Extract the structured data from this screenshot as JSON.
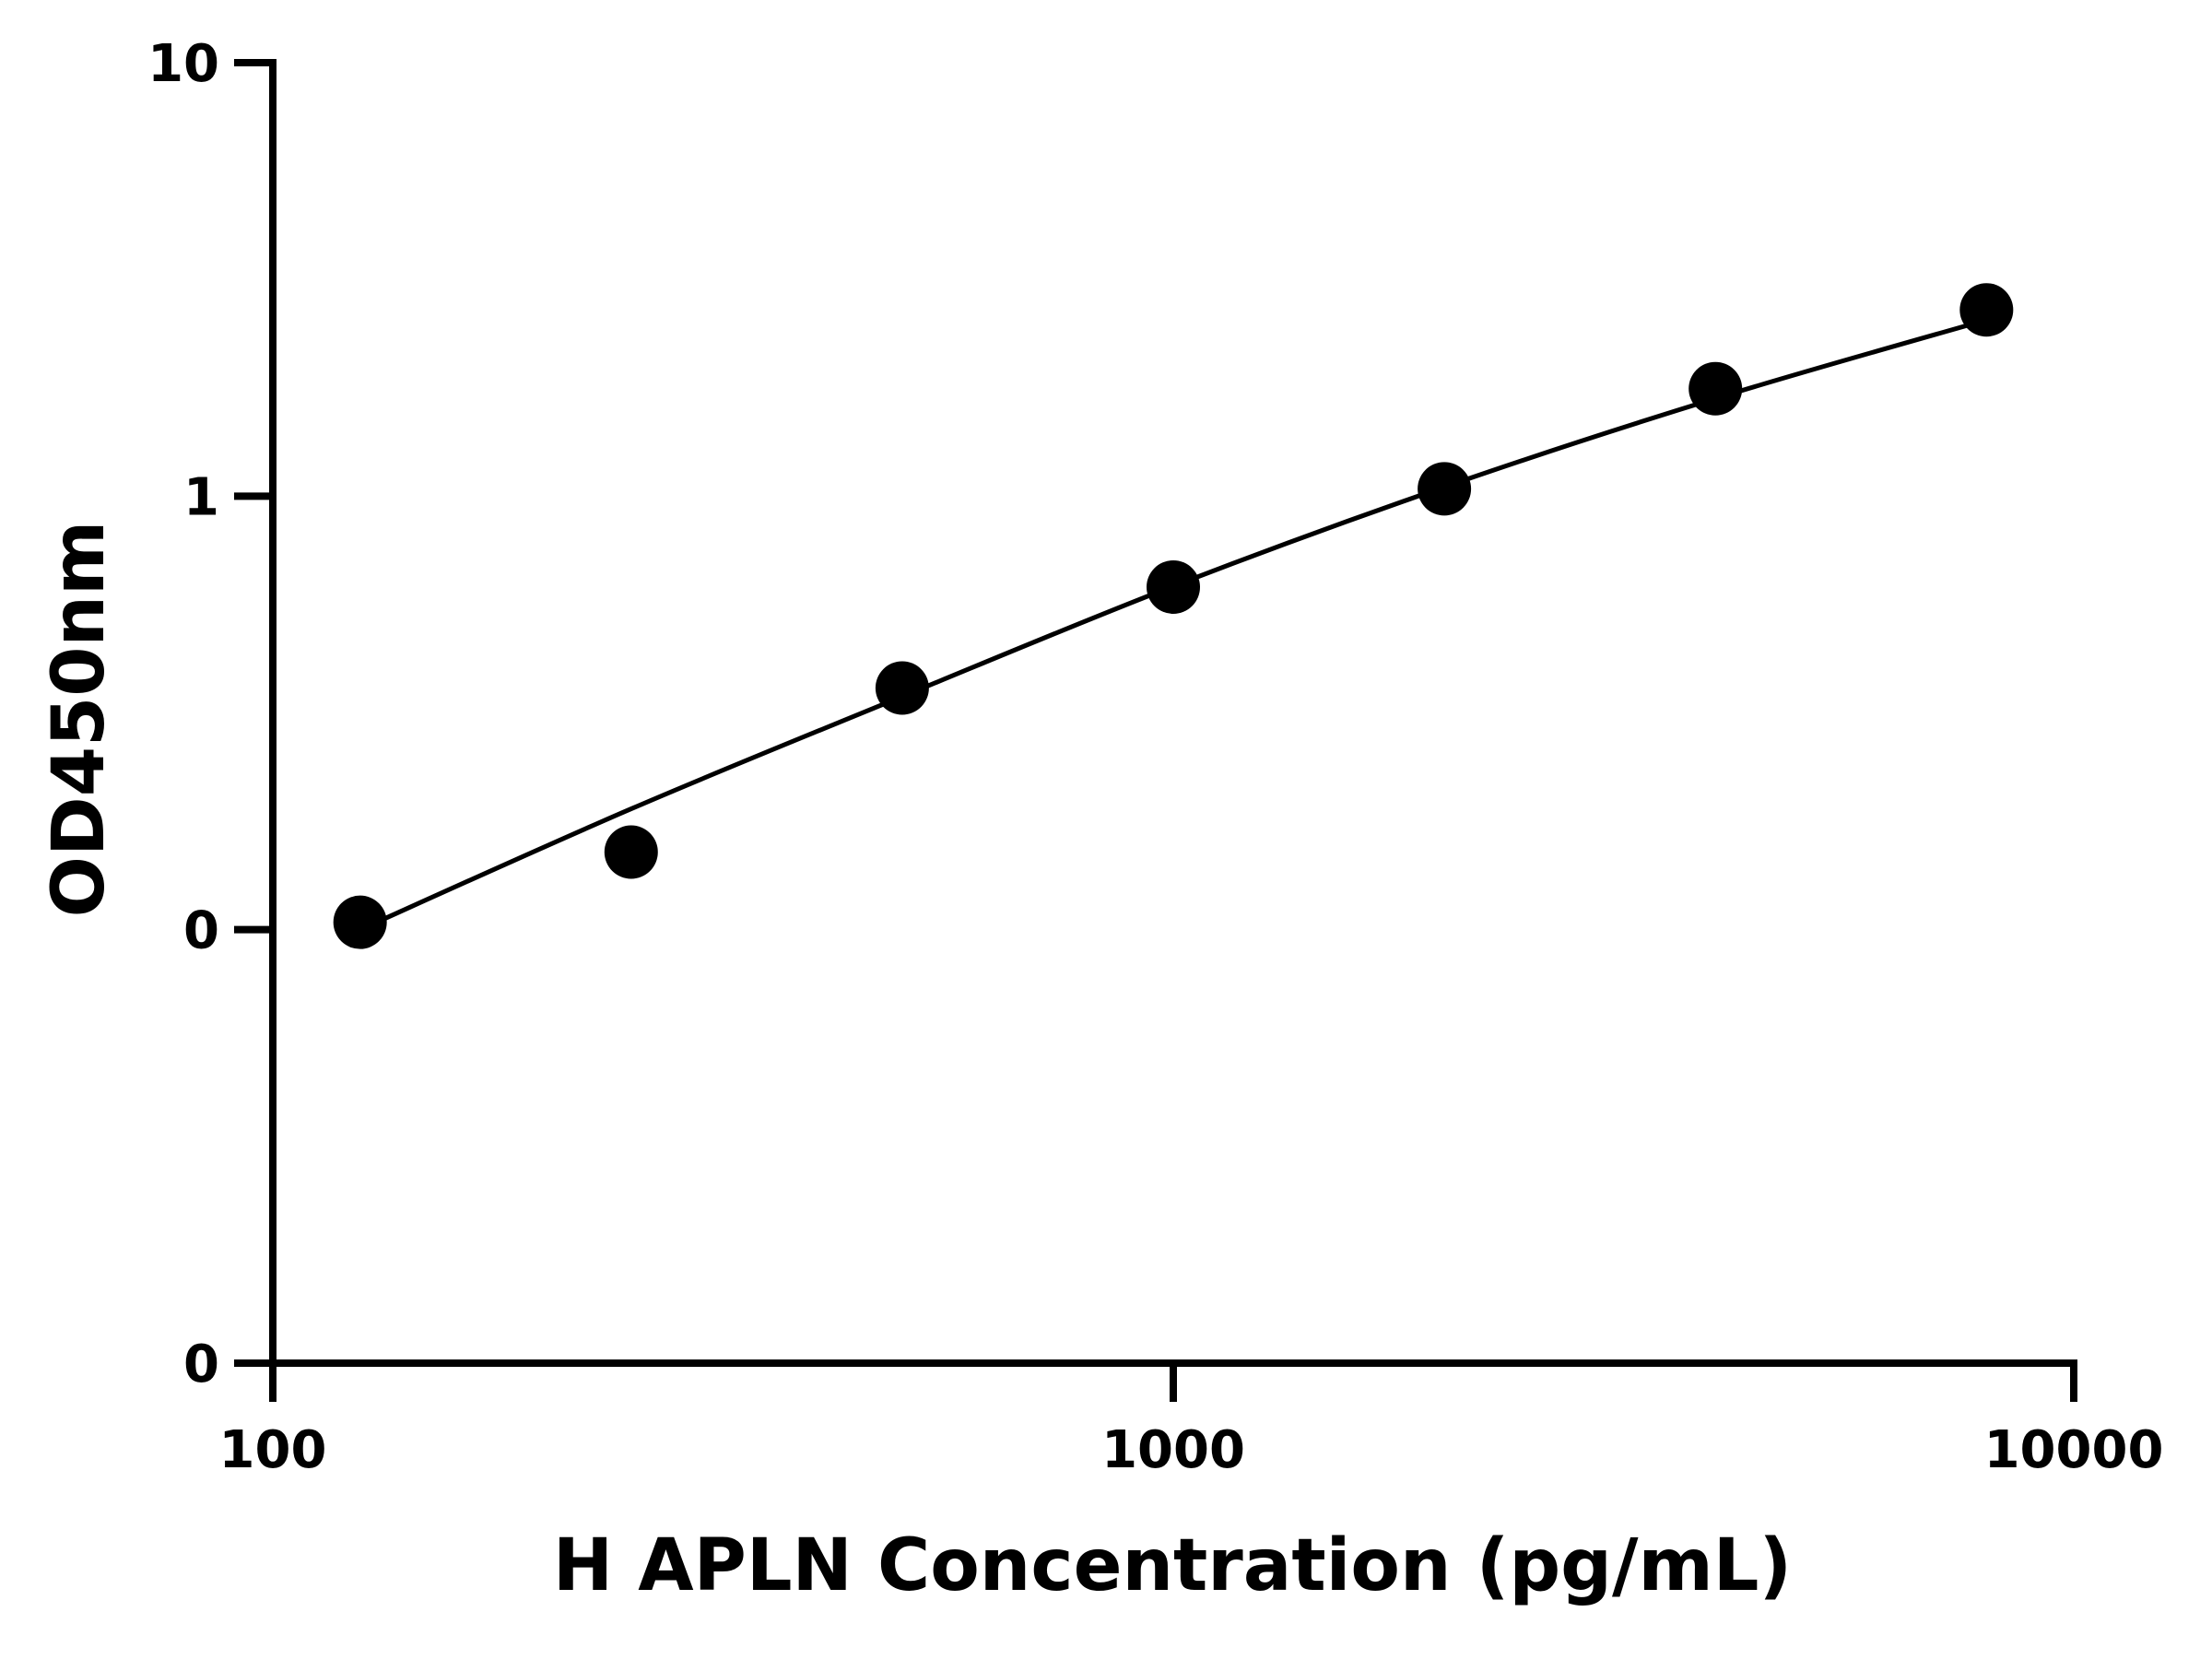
{
  "chart_data": {
    "type": "scatter",
    "xlabel": "H APLN Concentration (pg/mL)",
    "ylabel": "OD450nm",
    "xscale": "log",
    "yscale": "log",
    "xlim": [
      100,
      10000
    ],
    "ylim": [
      0.01,
      10
    ],
    "x_ticks": [
      100,
      1000,
      10000
    ],
    "x_tick_labels": [
      "100",
      "1000",
      "10000"
    ],
    "y_ticks": [
      0.01,
      0.1,
      1,
      10
    ],
    "y_tick_labels": [
      "0",
      "0",
      "1",
      "10"
    ],
    "grid": false,
    "series": [
      {
        "x": [
          125,
          250,
          500,
          1000,
          2000,
          4000,
          8000
        ],
        "y": [
          0.104,
          0.151,
          0.361,
          0.617,
          1.04,
          1.77,
          2.69
        ],
        "marker": "circle",
        "color": "#000000"
      }
    ],
    "fit_curve": {
      "color": "#000000",
      "x": [
        125,
        250,
        500,
        1000,
        2000,
        4000,
        8000
      ],
      "y": [
        0.1,
        0.19,
        0.345,
        0.62,
        1.05,
        1.68,
        2.55
      ]
    }
  }
}
